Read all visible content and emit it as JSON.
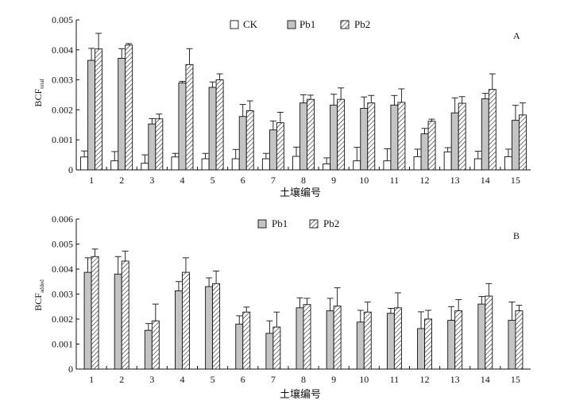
{
  "chart_data": [
    {
      "type": "bar",
      "panel_label": "A",
      "ylabel_main": "BCF",
      "ylabel_sub": "total",
      "xlabel": "土壤编号",
      "categories": [
        "1",
        "2",
        "3",
        "4",
        "5",
        "6",
        "7",
        "8",
        "9",
        "10",
        "11",
        "12",
        "13",
        "14",
        "15"
      ],
      "ylim": [
        0,
        0.005
      ],
      "yticks": [
        0,
        0.001,
        0.002,
        0.003,
        0.004,
        0.005
      ],
      "ytick_labels": [
        "0",
        "0.001",
        "0.002",
        "0.003",
        "0.004",
        "0.005"
      ],
      "legend_position": "top-center",
      "series": [
        {
          "name": "CK",
          "fill": "white",
          "color": "#ffffff",
          "values": [
            0.00043,
            0.0003,
            0.00022,
            0.00043,
            0.00037,
            0.00037,
            0.00037,
            0.00045,
            0.0002,
            0.0003,
            0.0003,
            0.00044,
            0.0006,
            0.00037,
            0.00044
          ],
          "errors": [
            0.0002,
            0.00031,
            0.00028,
            0.00012,
            0.00018,
            0.00031,
            0.00018,
            0.00031,
            0.0002,
            0.00045,
            0.0004,
            0.00025,
            0.00014,
            0.00025,
            0.00025
          ]
        },
        {
          "name": "Pb1",
          "fill": "gray",
          "color": "#c4c4c4",
          "values": [
            0.00365,
            0.00372,
            0.00153,
            0.0029,
            0.00275,
            0.00178,
            0.00133,
            0.00223,
            0.00216,
            0.00205,
            0.00216,
            0.0012,
            0.0019,
            0.00237,
            0.00165
          ],
          "errors": [
            0.0004,
            0.00032,
            0.00018,
            5e-05,
            0.00018,
            0.0004,
            0.0003,
            0.00027,
            0.00036,
            0.00038,
            0.00032,
            0.00018,
            0.0005,
            0.00018,
            0.0005
          ]
        },
        {
          "name": "Pb2",
          "fill": "hatched",
          "color": "#ffffff",
          "values": [
            0.00403,
            0.00416,
            0.0017,
            0.00351,
            0.003,
            0.00197,
            0.00157,
            0.00235,
            0.00235,
            0.00223,
            0.00225,
            0.00162,
            0.00222,
            0.00268,
            0.00183
          ],
          "errors": [
            0.00052,
            5e-05,
            0.00016,
            0.00053,
            0.0002,
            0.00033,
            0.00035,
            0.00014,
            0.00038,
            0.00025,
            0.00045,
            7e-05,
            0.00022,
            0.00052,
            0.0004
          ]
        }
      ]
    },
    {
      "type": "bar",
      "panel_label": "B",
      "ylabel_main": "BCF",
      "ylabel_sub": "added",
      "xlabel": "土壤编号",
      "categories": [
        "1",
        "2",
        "3",
        "4",
        "5",
        "6",
        "7",
        "8",
        "9",
        "10",
        "11",
        "12",
        "13",
        "14",
        "15"
      ],
      "ylim": [
        0,
        0.006
      ],
      "yticks": [
        0,
        0.001,
        0.002,
        0.003,
        0.004,
        0.005,
        0.006
      ],
      "ytick_labels": [
        "0",
        "0.001",
        "0.002",
        "0.003",
        "0.004",
        "0.005",
        "0.006"
      ],
      "legend_position": "top-center",
      "series": [
        {
          "name": "Pb1",
          "fill": "gray",
          "color": "#c4c4c4",
          "values": [
            0.00387,
            0.0038,
            0.00155,
            0.00313,
            0.0033,
            0.0018,
            0.00143,
            0.00245,
            0.00233,
            0.00188,
            0.00223,
            0.00162,
            0.00195,
            0.0026,
            0.00195
          ],
          "errors": [
            0.00058,
            0.0007,
            0.00027,
            0.00037,
            0.00035,
            0.00033,
            0.0005,
            0.0004,
            0.0005,
            0.00047,
            0.0002,
            0.00067,
            0.00055,
            0.0003,
            0.00073
          ]
        },
        {
          "name": "Pb2",
          "fill": "hatched",
          "color": "#ffffff",
          "values": [
            0.0045,
            0.00432,
            0.00193,
            0.00387,
            0.00342,
            0.00228,
            0.00168,
            0.00258,
            0.00252,
            0.00228,
            0.00245,
            0.002,
            0.00233,
            0.00292,
            0.00233
          ],
          "errors": [
            0.0003,
            0.0004,
            0.00067,
            0.00058,
            0.0005,
            0.0002,
            0.0006,
            0.00025,
            0.00073,
            0.0004,
            0.0006,
            0.00035,
            0.00045,
            0.0005,
            0.00022
          ]
        }
      ]
    }
  ]
}
